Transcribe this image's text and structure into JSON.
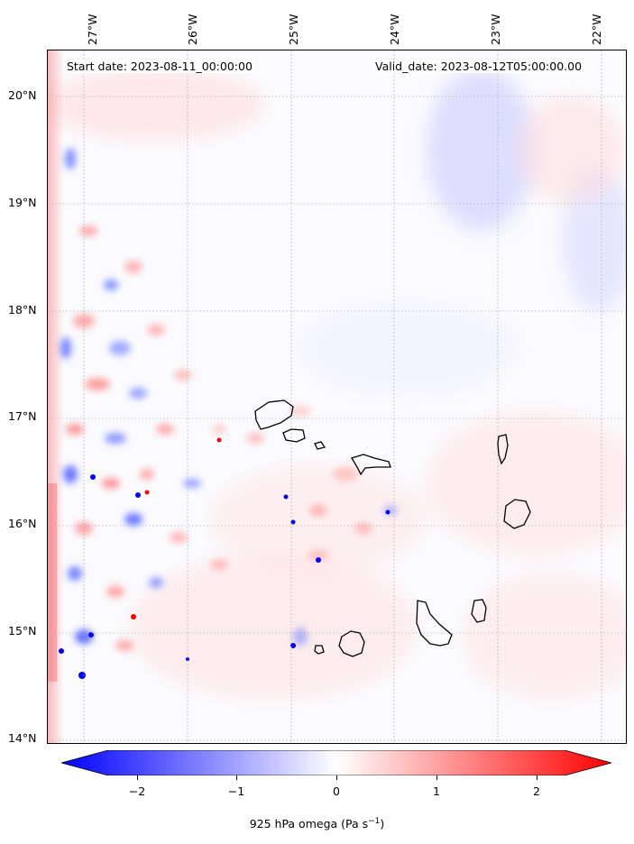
{
  "map": {
    "start_date": "Start date: 2023-08-11_00:00:00",
    "valid_date": "Valid_date: 2023-08-12T05:00:00.00",
    "lon_labels": [
      "27°W",
      "26°W",
      "25°W",
      "24°W",
      "23°W",
      "22°W"
    ],
    "lat_labels": [
      "20°N",
      "19°N",
      "18°N",
      "17°N",
      "16°N",
      "15°N",
      "14°N"
    ],
    "field_variable": "925 hPa omega",
    "colormap": "bwr",
    "colors": {
      "negative": "#0000ff",
      "zero": "#ffffff",
      "positive": "#ff0000",
      "coastline": "#000000"
    }
  },
  "colorbar": {
    "ticks": [
      "−2",
      "−1",
      "0",
      "1",
      "2"
    ],
    "range": [
      -2.6,
      2.6
    ],
    "label_text": "925 hPa omega (Pa s",
    "label_exp": "−1",
    "label_close": ")"
  }
}
